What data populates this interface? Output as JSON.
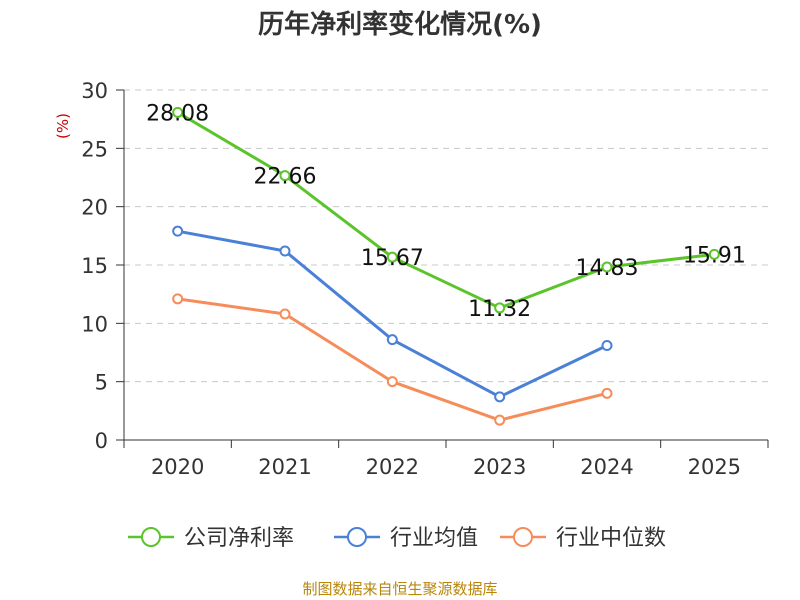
{
  "chart_data": {
    "type": "line",
    "title": "历年净利率变化情况(%)",
    "xlabel": "",
    "ylabel": "(%)",
    "categories": [
      "2020",
      "2021",
      "2022",
      "2023",
      "2024",
      "2025"
    ],
    "ylim": [
      0,
      30
    ],
    "yticks": [
      0,
      5,
      10,
      15,
      20,
      25,
      30
    ],
    "grid": true,
    "legend_position": "bottom",
    "series": [
      {
        "name": "公司净利率",
        "color": "#5bc42a",
        "values": [
          28.08,
          22.66,
          15.67,
          11.32,
          14.83,
          15.91
        ],
        "labels": [
          "28.08",
          "22.66",
          "15.67",
          "11.32",
          "14.83",
          "15.91"
        ]
      },
      {
        "name": "行业均值",
        "color": "#4a80d6",
        "values": [
          17.9,
          16.2,
          8.6,
          3.7,
          8.1,
          null
        ]
      },
      {
        "name": "行业中位数",
        "color": "#f58c5a",
        "values": [
          12.1,
          10.8,
          5.0,
          1.7,
          4.0,
          null
        ]
      }
    ]
  },
  "source": "制图数据来自恒生聚源数据库"
}
